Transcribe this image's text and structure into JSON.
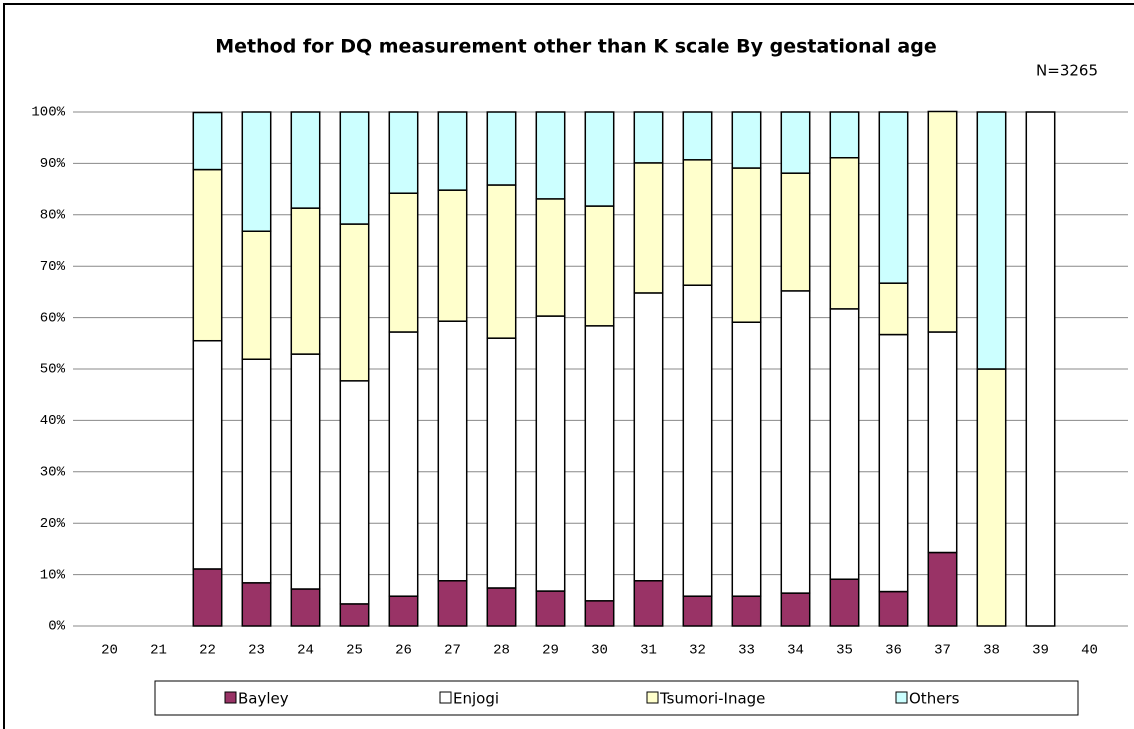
{
  "chart_data": {
    "type": "stacked_bar",
    "title": "Method for DQ measurement other than K scale By gestational age",
    "annotation": "N=3265",
    "categories": [
      "20",
      "21",
      "22",
      "23",
      "24",
      "25",
      "26",
      "27",
      "28",
      "29",
      "30",
      "31",
      "32",
      "33",
      "34",
      "35",
      "36",
      "37",
      "38",
      "39",
      "40"
    ],
    "series": [
      {
        "name": "Bayley",
        "color": "#993366",
        "values": [
          null,
          null,
          11.1,
          8.4,
          7.2,
          4.3,
          5.8,
          8.8,
          7.4,
          6.8,
          4.9,
          8.8,
          5.8,
          5.8,
          6.4,
          9.1,
          6.7,
          14.3,
          0,
          0,
          null
        ]
      },
      {
        "name": "Enjogi",
        "color": "#ffffff",
        "values": [
          null,
          null,
          44.4,
          43.5,
          45.7,
          43.4,
          51.4,
          50.5,
          48.6,
          53.5,
          53.5,
          56.0,
          60.5,
          53.3,
          58.8,
          52.6,
          50.0,
          42.9,
          0,
          100,
          null
        ]
      },
      {
        "name": "Tsumori-Inage",
        "color": "#ffffcc",
        "values": [
          null,
          null,
          33.3,
          24.9,
          28.4,
          30.5,
          27.0,
          25.5,
          29.8,
          22.8,
          23.3,
          25.3,
          24.4,
          30.0,
          22.9,
          29.4,
          10.0,
          42.9,
          50,
          0,
          null
        ]
      },
      {
        "name": "Others",
        "color": "#ccffff",
        "values": [
          null,
          null,
          11.1,
          23.2,
          18.7,
          21.8,
          15.8,
          15.2,
          14.2,
          16.9,
          18.3,
          9.9,
          9.3,
          10.9,
          11.9,
          8.9,
          33.3,
          0,
          50,
          0,
          null
        ]
      }
    ],
    "ylim": [
      0,
      100
    ],
    "yticks": [
      {
        "value": 0,
        "label": "0%"
      },
      {
        "value": 10,
        "label": "10%"
      },
      {
        "value": 20,
        "label": "20%"
      },
      {
        "value": 30,
        "label": "30%"
      },
      {
        "value": 40,
        "label": "40%"
      },
      {
        "value": 50,
        "label": "50%"
      },
      {
        "value": 60,
        "label": "60%"
      },
      {
        "value": 70,
        "label": "70%"
      },
      {
        "value": 80,
        "label": "80%"
      },
      {
        "value": 90,
        "label": "90%"
      },
      {
        "value": 100,
        "label": "100%"
      }
    ],
    "grid": true,
    "legend": "bottom"
  }
}
